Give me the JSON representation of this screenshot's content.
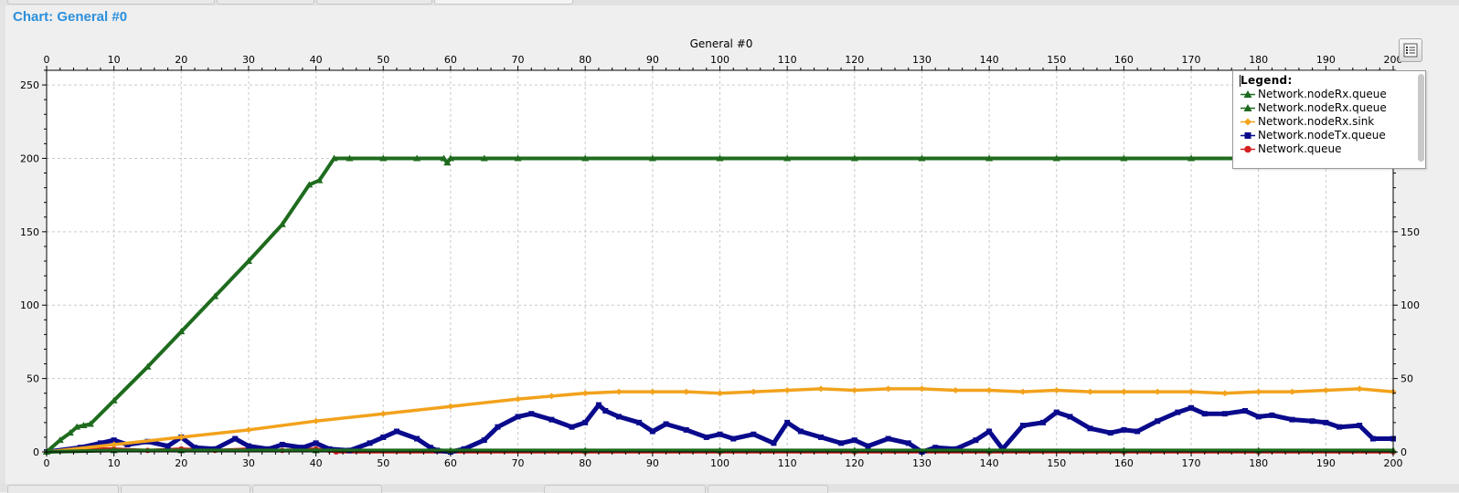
{
  "window": {
    "title": "Chart: General  #0"
  },
  "chart_data": {
    "type": "line",
    "title": "General  #0",
    "xlim": [
      0,
      200
    ],
    "ylim": [
      0,
      260
    ],
    "x_ticks": [
      0,
      10,
      20,
      30,
      40,
      50,
      60,
      70,
      80,
      90,
      100,
      110,
      120,
      130,
      140,
      150,
      160,
      170,
      180,
      190,
      200
    ],
    "y_ticks": [
      0,
      50,
      100,
      150,
      200,
      250
    ],
    "grid": true,
    "legend_position": "top-right",
    "legend_title": "Legend:",
    "series": [
      {
        "name": "Network.nodeRx.queue",
        "color": "#1e6b1e",
        "marker": "triangle",
        "x": [
          0,
          2,
          3.5,
          4.5,
          5.5,
          6.5,
          10,
          15,
          20,
          25,
          30,
          35,
          39,
          40.5,
          42.7,
          45,
          50,
          55,
          59,
          59.5,
          60,
          65,
          70,
          80,
          90,
          100,
          110,
          120,
          130,
          140,
          150,
          160,
          170,
          180,
          190,
          200
        ],
        "y": [
          0,
          8,
          13,
          17,
          18,
          19,
          35,
          58,
          82,
          106,
          130,
          155,
          182,
          185,
          200,
          200,
          200,
          200,
          200,
          197,
          200,
          200,
          200,
          200,
          200,
          200,
          200,
          200,
          200,
          200,
          200,
          200,
          200,
          200,
          200,
          200
        ]
      },
      {
        "name": "Network.nodeRx.queue",
        "color": "#1e6b1e",
        "marker": "triangle",
        "x": [
          0,
          10,
          20,
          40,
          60,
          80,
          100,
          120,
          140,
          160,
          180,
          200
        ],
        "y": [
          0,
          1,
          1,
          1,
          1,
          1,
          1,
          1,
          1,
          1,
          1,
          1
        ]
      },
      {
        "name": "Network.nodeRx.sink",
        "color": "#f2a21c",
        "marker": "diamond",
        "x": [
          0,
          10,
          20,
          30,
          40,
          50,
          60,
          70,
          75,
          80,
          85,
          90,
          95,
          100,
          105,
          110,
          115,
          120,
          125,
          130,
          135,
          140,
          145,
          150,
          155,
          160,
          165,
          170,
          175,
          180,
          185,
          190,
          195,
          200
        ],
        "y": [
          0,
          5,
          10,
          15,
          21,
          26,
          31,
          36,
          38,
          40,
          41,
          41,
          41,
          40,
          41,
          42,
          43,
          42,
          43,
          43,
          42,
          42,
          41,
          42,
          41,
          41,
          41,
          41,
          40,
          41,
          41,
          42,
          43,
          41
        ]
      },
      {
        "name": "Network.nodeTx.queue",
        "color": "#0a0a8c",
        "marker": "square",
        "x": [
          0,
          5,
          8,
          10,
          12,
          15,
          18,
          20,
          22,
          25,
          28,
          30,
          33,
          35,
          38,
          40,
          42,
          45,
          48,
          50,
          52,
          55,
          57,
          58,
          60,
          62,
          65,
          67,
          70,
          72,
          75,
          78,
          80,
          82,
          83,
          85,
          88,
          90,
          92,
          95,
          98,
          100,
          102,
          105,
          108,
          110,
          112,
          115,
          118,
          120,
          122,
          125,
          128,
          130,
          132,
          135,
          138,
          140,
          142,
          145,
          148,
          150,
          152,
          155,
          158,
          160,
          162,
          165,
          168,
          170,
          172,
          175,
          178,
          180,
          182,
          185,
          188,
          190,
          192,
          195,
          197,
          200
        ],
        "y": [
          0,
          3,
          6,
          8,
          5,
          7,
          4,
          10,
          3,
          2,
          9,
          4,
          2,
          5,
          3,
          6,
          2,
          1,
          6,
          10,
          14,
          9,
          3,
          1,
          0,
          2,
          8,
          17,
          24,
          26,
          22,
          17,
          20,
          32,
          28,
          24,
          20,
          14,
          19,
          15,
          10,
          12,
          9,
          12,
          6,
          20,
          14,
          10,
          6,
          8,
          4,
          9,
          6,
          0,
          3,
          2,
          8,
          14,
          2,
          18,
          20,
          27,
          24,
          16,
          13,
          15,
          14,
          21,
          27,
          30,
          26,
          26,
          28,
          24,
          25,
          22,
          21,
          20,
          17,
          18,
          9,
          9
        ]
      },
      {
        "name": "Network.queue",
        "color": "#d42020",
        "marker": "circle",
        "x": [
          0,
          5,
          10,
          15,
          20,
          25,
          30,
          35,
          40,
          42,
          43,
          60,
          80,
          100,
          120,
          130,
          140,
          160,
          180,
          200
        ],
        "y": [
          0,
          2,
          2,
          1,
          2,
          1,
          2,
          1,
          2,
          1,
          0,
          0,
          0,
          0,
          0,
          0,
          0,
          0,
          0,
          0
        ]
      }
    ]
  }
}
